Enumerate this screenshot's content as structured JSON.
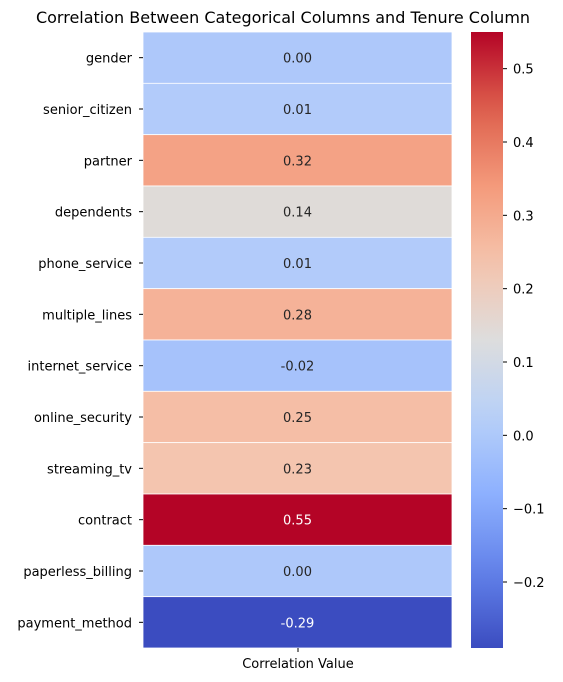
{
  "chart_data": {
    "type": "heatmap",
    "title": "Correlation Between Categorical Columns and Tenure Column",
    "xlabel": "",
    "ylabel": "",
    "columns": [
      "Correlation Value"
    ],
    "rows": [
      "gender",
      "senior_citizen",
      "partner",
      "dependents",
      "phone_service",
      "multiple_lines",
      "internet_service",
      "online_security",
      "streaming_tv",
      "contract",
      "paperless_billing",
      "payment_method"
    ],
    "values": [
      0.0,
      0.01,
      0.32,
      0.14,
      0.01,
      0.28,
      -0.02,
      0.25,
      0.23,
      0.55,
      0.0,
      -0.29
    ],
    "value_labels": [
      "0.00",
      "0.01",
      "0.32",
      "0.14",
      "0.01",
      "0.28",
      "-0.02",
      "0.25",
      "0.23",
      "0.55",
      "0.00",
      "-0.29"
    ],
    "colormap": "coolwarm",
    "vmin": -0.29,
    "vmax": 0.55,
    "colorbar_ticks": [
      -0.2,
      -0.1,
      0.0,
      0.1,
      0.2,
      0.3,
      0.4,
      0.5
    ],
    "colorbar_tick_labels": [
      "−0.2",
      "−0.1",
      "0.0",
      "0.1",
      "0.2",
      "0.3",
      "0.4",
      "0.5"
    ],
    "grid": false
  }
}
